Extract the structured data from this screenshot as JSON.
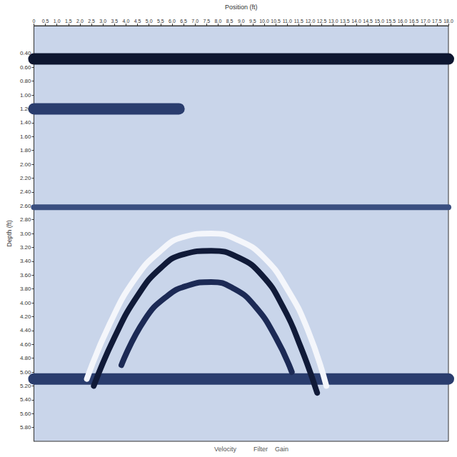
{
  "chart_data": {
    "type": "line",
    "xlabel": "Position (ft)",
    "ylabel": "Depth (ft)",
    "annotations": [
      "Velocity",
      "Filter",
      "Gain"
    ],
    "xlim": [
      0,
      18.0
    ],
    "ylim": [
      0,
      6.0
    ],
    "xticks": [
      0,
      0.5,
      {
        "value": 1,
        "label": "1.0"
      },
      1.5,
      {
        "value": 2,
        "label": "2.0"
      },
      2.5,
      {
        "value": 3,
        "label": "3.0"
      },
      3.5,
      {
        "value": 4,
        "label": "4.0"
      },
      4.5,
      {
        "value": 5,
        "label": "5.0"
      },
      5.5,
      {
        "value": 6,
        "label": "6.0"
      },
      6.5,
      {
        "value": 7,
        "label": "7.0"
      },
      7.5,
      {
        "value": 8,
        "label": "8.0"
      },
      8.5,
      {
        "value": 9,
        "label": "9.0"
      },
      9.5,
      {
        "value": 10,
        "label": "10.0"
      },
      10.5,
      {
        "value": 11,
        "label": "11.0"
      },
      11.5,
      {
        "value": 12,
        "label": "12.0"
      },
      12.5,
      {
        "value": 13,
        "label": "13.0"
      },
      13.5,
      {
        "value": 14,
        "label": "14.0"
      },
      14.5,
      {
        "value": 15,
        "label": "15.0"
      },
      15.5,
      {
        "value": 16,
        "label": "16.0"
      },
      16.5,
      {
        "value": 17,
        "label": "17.0"
      },
      17.5,
      {
        "value": 18,
        "label": "18.0"
      }
    ],
    "yticks": [
      {
        "value": 0.4,
        "label": "0.40"
      },
      {
        "value": 0.6,
        "label": "0.60"
      },
      {
        "value": 0.8,
        "label": "0.80"
      },
      {
        "value": 1,
        "label": "1.00"
      },
      {
        "value": 1.2,
        "label": "1.20"
      },
      {
        "value": 1.4,
        "label": "1.40"
      },
      {
        "value": 1.6,
        "label": "1.60"
      },
      {
        "value": 1.8,
        "label": "1.80"
      },
      {
        "value": 2,
        "label": "2.00"
      },
      {
        "value": 2.2,
        "label": "2.20"
      },
      {
        "value": 2.4,
        "label": "2.40"
      },
      {
        "value": 2.6,
        "label": "2.60"
      },
      {
        "value": 2.8,
        "label": "2.80"
      },
      {
        "value": 3,
        "label": "3.00"
      },
      {
        "value": 3.2,
        "label": "3.20"
      },
      {
        "value": 3.4,
        "label": "3.40"
      },
      {
        "value": 3.6,
        "label": "3.60"
      },
      {
        "value": 3.8,
        "label": "3.80"
      },
      {
        "value": 4,
        "label": "4.00"
      },
      {
        "value": 4.2,
        "label": "4.20"
      },
      {
        "value": 4.4,
        "label": "4.40"
      },
      {
        "value": 4.6,
        "label": "4.60"
      },
      {
        "value": 4.8,
        "label": "4.80"
      },
      {
        "value": 5,
        "label": "5.00"
      },
      {
        "value": 5.2,
        "label": "5.20"
      },
      {
        "value": 5.4,
        "label": "5.40"
      },
      {
        "value": 5.6,
        "label": "5.60"
      },
      {
        "value": 5.8,
        "label": "5.80"
      }
    ],
    "grid": false,
    "series": [
      {
        "color": "#0d1630",
        "line_style": "band",
        "x": [
          0,
          18.0
        ],
        "values": [
          0.48,
          0.48
        ]
      },
      {
        "color": "#2a3d6e",
        "line_style": "band",
        "x": [
          0,
          6.3
        ],
        "values": [
          1.2,
          1.2
        ]
      },
      {
        "color": "#3a4f80",
        "line_style": "solid",
        "x": [
          0,
          18.0
        ],
        "values": [
          2.62,
          2.62
        ]
      },
      {
        "color": "#2a3d6e",
        "line_style": "band",
        "x": [
          0,
          18.0
        ],
        "values": [
          5.1,
          5.1
        ]
      },
      {
        "color": "#f4f6fb",
        "line_style": "solid",
        "x": [
          2.3,
          3.3,
          4.4,
          5.5,
          6.5,
          7.7,
          8.9,
          10.0,
          11.0,
          11.9,
          12.7
        ],
        "values": [
          5.1,
          4.3,
          3.65,
          3.25,
          3.05,
          3.0,
          3.1,
          3.35,
          3.8,
          4.4,
          5.2
        ]
      },
      {
        "color": "#101a38",
        "line_style": "solid",
        "x": [
          2.6,
          3.5,
          4.5,
          5.5,
          6.5,
          7.7,
          8.9,
          9.9,
          10.8,
          11.6,
          12.3
        ],
        "values": [
          5.2,
          4.5,
          3.9,
          3.5,
          3.3,
          3.25,
          3.35,
          3.6,
          4.05,
          4.65,
          5.3
        ]
      },
      {
        "color": "#1c2a55",
        "line_style": "solid",
        "x": [
          3.8,
          4.8,
          5.8,
          6.7,
          7.7,
          8.7,
          9.6,
          10.5,
          11.2
        ],
        "values": [
          4.9,
          4.25,
          3.9,
          3.75,
          3.7,
          3.8,
          4.05,
          4.5,
          5.0
        ]
      }
    ]
  }
}
